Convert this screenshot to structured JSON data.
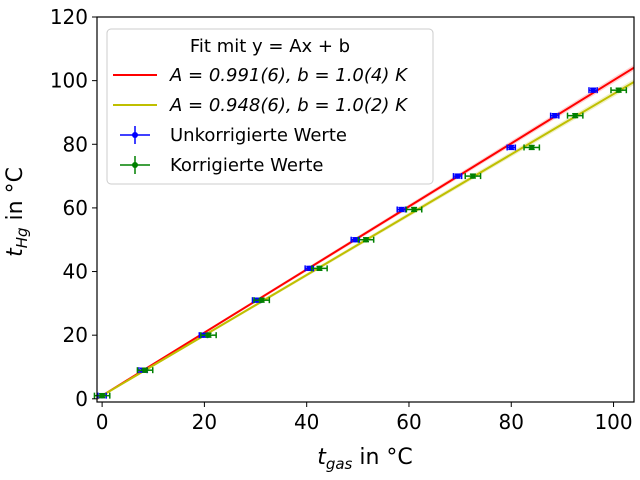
{
  "chart_data": {
    "type": "scatter",
    "title": "",
    "xlabel_main": "t",
    "xlabel_sub": "gas",
    "xlabel_unit": " in °C",
    "ylabel_main": "t",
    "ylabel_sub": "Hg",
    "ylabel_unit": " in °C",
    "xlim": [
      -1,
      104
    ],
    "ylim": [
      -1,
      120
    ],
    "xticks": [
      0,
      20,
      40,
      60,
      80,
      100
    ],
    "yticks": [
      0,
      20,
      40,
      60,
      80,
      100,
      120
    ],
    "grid": false,
    "legend_position": "top-left",
    "legend_title": "Fit mit y = Ax + b",
    "fits": [
      {
        "label": "A = 0.991(6), b = 1.0(4) K",
        "A": 0.991,
        "b": 1.0,
        "color": "#ff0000",
        "band_color": "#ffb3b3"
      },
      {
        "label": "A = 0.948(6), b = 1.0(2) K",
        "A": 0.948,
        "b": 1.0,
        "color": "#bfbf00",
        "band_color": "#e8e8a0"
      }
    ],
    "series": [
      {
        "name": "Unkorrigierte Werte",
        "color": "#0000ff",
        "x": [
          0.0,
          8.0,
          19.8,
          30.2,
          40.5,
          49.5,
          58.5,
          69.5,
          80.0,
          88.5,
          96.0
        ],
        "y": [
          1.0,
          9.0,
          20.0,
          31.0,
          41.0,
          50.0,
          59.5,
          70.0,
          79.0,
          89.0,
          97.0
        ],
        "xerr": 0.8,
        "yerr": 0.6
      },
      {
        "name": "Korrigierte Werte",
        "color": "#008000",
        "x": [
          0.0,
          8.4,
          20.8,
          31.2,
          42.5,
          51.6,
          61.0,
          72.5,
          84.0,
          92.5,
          101.0
        ],
        "y": [
          1.0,
          9.0,
          20.0,
          31.0,
          41.0,
          50.0,
          59.5,
          70.0,
          79.0,
          89.0,
          97.0
        ],
        "xerr": 1.5,
        "yerr": 0.6
      }
    ]
  }
}
